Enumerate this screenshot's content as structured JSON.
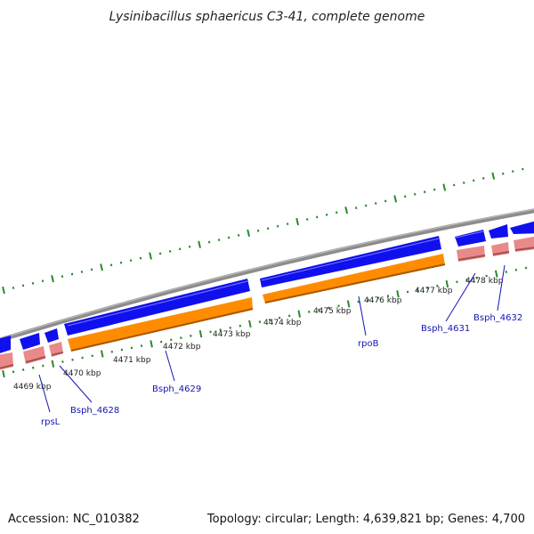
{
  "title": "Lysinibacillus sphaericus C3-41, complete genome",
  "footer": {
    "accession": "Accession: NC_010382",
    "summary": "Topology: circular; Length: 4,639,821 bp; Genes: 4,700"
  },
  "colors": {
    "backbone": "#8c8c8c",
    "gene_forward": "#1010ee",
    "gene_reverse": "#ff8c00",
    "rrna_track": "#e98a8a",
    "tick": "#2a8a2a",
    "label": "#1414b4"
  },
  "ticks": [
    {
      "label": "4469 kbp"
    },
    {
      "label": "4470 kbp"
    },
    {
      "label": "4471 kbp"
    },
    {
      "label": "4472 kbp"
    },
    {
      "label": "4473 kbp"
    },
    {
      "label": "4474 kbp"
    },
    {
      "label": "4475 kbp"
    },
    {
      "label": "4476 kbp"
    },
    {
      "label": "4477 kbp"
    },
    {
      "label": "4478 kbp"
    }
  ],
  "gene_labels": [
    {
      "text": "rpsL"
    },
    {
      "text": "Bsph_4628"
    },
    {
      "text": "Bsph_4629"
    },
    {
      "text": "rpoB"
    },
    {
      "text": "Bsph_4631"
    },
    {
      "text": "Bsph_4632"
    }
  ]
}
